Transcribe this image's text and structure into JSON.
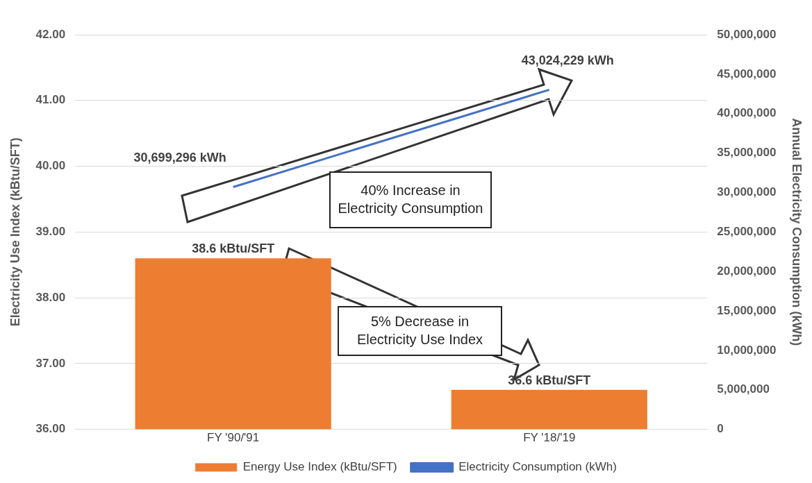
{
  "chart_data": {
    "type": "bar",
    "categories": [
      "FY '90/'91",
      "FY '18/'19"
    ],
    "series": [
      {
        "name": "Energy Use Index (kBtu/SFT)",
        "color": "#ed7d31",
        "values": [
          38.6,
          36.6
        ],
        "value_labels": [
          "38.6 kBtu/SFT",
          "36.6 kBtu/SFT"
        ]
      },
      {
        "name": "Electricity Consumption (kWh)",
        "type": "line",
        "axis": "y2",
        "color": "#4472c4",
        "values": [
          30699296,
          43024229
        ],
        "value_labels": [
          "30,699,296 kWh",
          "43,024,229 kWh"
        ]
      }
    ],
    "ylabel": "Electricity Use Index (kBtu/SFT)",
    "y2label": "Annual Electricity Consumption (kWh)",
    "ylim": [
      36,
      42
    ],
    "yticks": [
      {
        "value": 36,
        "label": "36.00"
      },
      {
        "value": 37,
        "label": "37.00"
      },
      {
        "value": 38,
        "label": "38.00"
      },
      {
        "value": 39,
        "label": "39.00"
      },
      {
        "value": 40,
        "label": "40.00"
      },
      {
        "value": 41,
        "label": "41.00"
      },
      {
        "value": 42,
        "label": "42.00"
      }
    ],
    "y2lim": [
      0,
      50000000
    ],
    "y2ticks": [
      {
        "value": 0,
        "label": "0"
      },
      {
        "value": 5000000,
        "label": "5,000,000"
      },
      {
        "value": 10000000,
        "label": "10,000,000"
      },
      {
        "value": 15000000,
        "label": "15,000,000"
      },
      {
        "value": 20000000,
        "label": "20,000,000"
      },
      {
        "value": 25000000,
        "label": "25,000,000"
      },
      {
        "value": 30000000,
        "label": "30,000,000"
      },
      {
        "value": 35000000,
        "label": "35,000,000"
      },
      {
        "value": 40000000,
        "label": "40,000,000"
      },
      {
        "value": 45000000,
        "label": "45,000,000"
      },
      {
        "value": 50000000,
        "label": "50,000,000"
      }
    ],
    "annotations": [
      "40% Increase in Electricity Consumption",
      "5% Decrease in Electricity Use Index"
    ],
    "grid": "y",
    "legend": "bottom",
    "marker": "none"
  }
}
